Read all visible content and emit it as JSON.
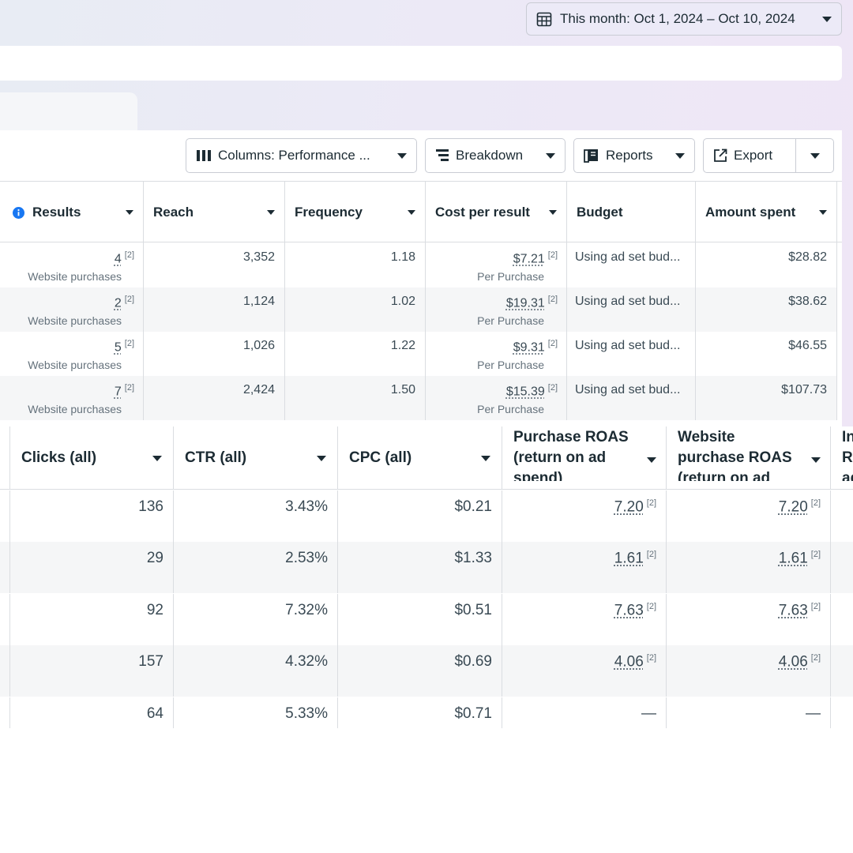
{
  "date_range": {
    "label": "This month: Oct 1, 2024 – Oct 10, 2024",
    "icon": "calendar-icon"
  },
  "toolbar": {
    "columns_label": "Columns: Performance ...",
    "breakdown_label": "Breakdown",
    "reports_label": "Reports",
    "export_label": "Export"
  },
  "top_table": {
    "headers": {
      "results": "Results",
      "reach": "Reach",
      "frequency": "Frequency",
      "cost_per_result": "Cost per result",
      "budget": "Budget",
      "amount_spent": "Amount spent"
    },
    "rows": [
      {
        "results": "4",
        "results_sub": "Website purchases",
        "reach": "3,352",
        "frequency": "1.18",
        "cpr": "$7.21",
        "cpr_sub": "Per Purchase",
        "budget": "Using ad set bud...",
        "spent": "$28.82"
      },
      {
        "results": "2",
        "results_sub": "Website purchases",
        "reach": "1,124",
        "frequency": "1.02",
        "cpr": "$19.31",
        "cpr_sub": "Per Purchase",
        "budget": "Using ad set bud...",
        "spent": "$38.62"
      },
      {
        "results": "5",
        "results_sub": "Website purchases",
        "reach": "1,026",
        "frequency": "1.22",
        "cpr": "$9.31",
        "cpr_sub": "Per Purchase",
        "budget": "Using ad set bud...",
        "spent": "$46.55"
      },
      {
        "results": "7",
        "results_sub": "Website purchases",
        "reach": "2,424",
        "frequency": "1.50",
        "cpr": "$15.39",
        "cpr_sub": "Per Purchase",
        "budget": "Using ad set bud...",
        "spent": "$107.73"
      }
    ],
    "footnote": "[2]"
  },
  "bottom_table": {
    "headers": {
      "clicks": "Clicks (all)",
      "ctr": "CTR (all)",
      "cpc": "CPC (all)",
      "purchase_roas": "Purchase ROAS (return on ad spend)",
      "website_roas": "Website purchase ROAS (return on ad",
      "next": "In R ad"
    },
    "rows": [
      {
        "clicks": "136",
        "ctr": "3.43%",
        "cpc": "$0.21",
        "proas": "7.20",
        "wroas": "7.20"
      },
      {
        "clicks": "29",
        "ctr": "2.53%",
        "cpc": "$1.33",
        "proas": "1.61",
        "wroas": "1.61"
      },
      {
        "clicks": "92",
        "ctr": "7.32%",
        "cpc": "$0.51",
        "proas": "7.63",
        "wroas": "7.63"
      },
      {
        "clicks": "157",
        "ctr": "4.32%",
        "cpc": "$0.69",
        "proas": "4.06",
        "wroas": "4.06"
      },
      {
        "clicks": "64",
        "ctr": "5.33%",
        "cpc": "$0.71",
        "proas": "—",
        "wroas": "—"
      }
    ],
    "footnote": "[2]"
  }
}
